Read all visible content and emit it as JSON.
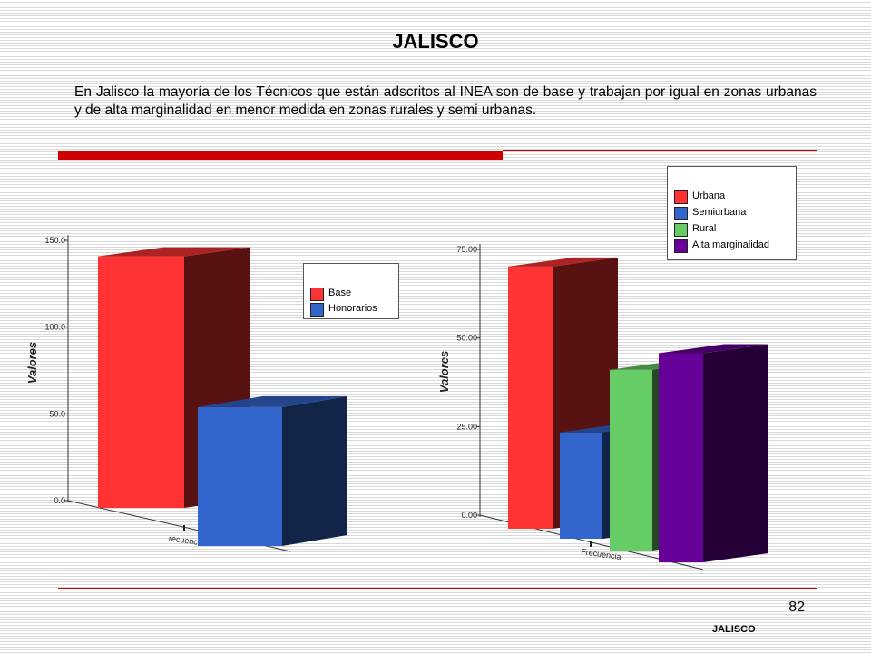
{
  "page": {
    "title": "JALISCO",
    "intro": "En Jalisco la mayoría de los Técnicos que están adscritos al INEA son de base y trabajan por igual en zonas urbanas y de alta marginalidad en menor medida en zonas rurales y semi urbanas.",
    "page_number": "82",
    "footer": "JALISCO"
  },
  "chart_data": [
    {
      "type": "bar",
      "categories": [
        "Frecuencia"
      ],
      "x_tick_label": "Frecuencia",
      "visible_tick_label": "recuencia",
      "ylabel": "Valores",
      "ylim": [
        0,
        150
      ],
      "yticks": [
        "0.0",
        "50.0",
        "100.0",
        "150.0"
      ],
      "series": [
        {
          "name": "Base",
          "values": [
            145
          ],
          "color": "#ff3333"
        },
        {
          "name": "Honorarios",
          "values": [
            80
          ],
          "color": "#3366cc"
        }
      ],
      "legend_position": "top-right"
    },
    {
      "type": "bar",
      "categories": [
        "Frecuencia"
      ],
      "x_tick_label": "Frecuencia",
      "ylabel": "Valores",
      "ylim": [
        0,
        75
      ],
      "yticks": [
        "0.00",
        "25.00",
        "50.00",
        "75.00"
      ],
      "series": [
        {
          "name": "Urbana",
          "values": [
            74
          ],
          "color": "#ff3333"
        },
        {
          "name": "Semiurbana",
          "values": [
            30
          ],
          "color": "#3366cc"
        },
        {
          "name": "Rural",
          "values": [
            51
          ],
          "color": "#66cc66"
        },
        {
          "name": "Alta marginalidad",
          "values": [
            59
          ],
          "color": "#660099"
        }
      ],
      "legend_position": "top-right"
    }
  ]
}
